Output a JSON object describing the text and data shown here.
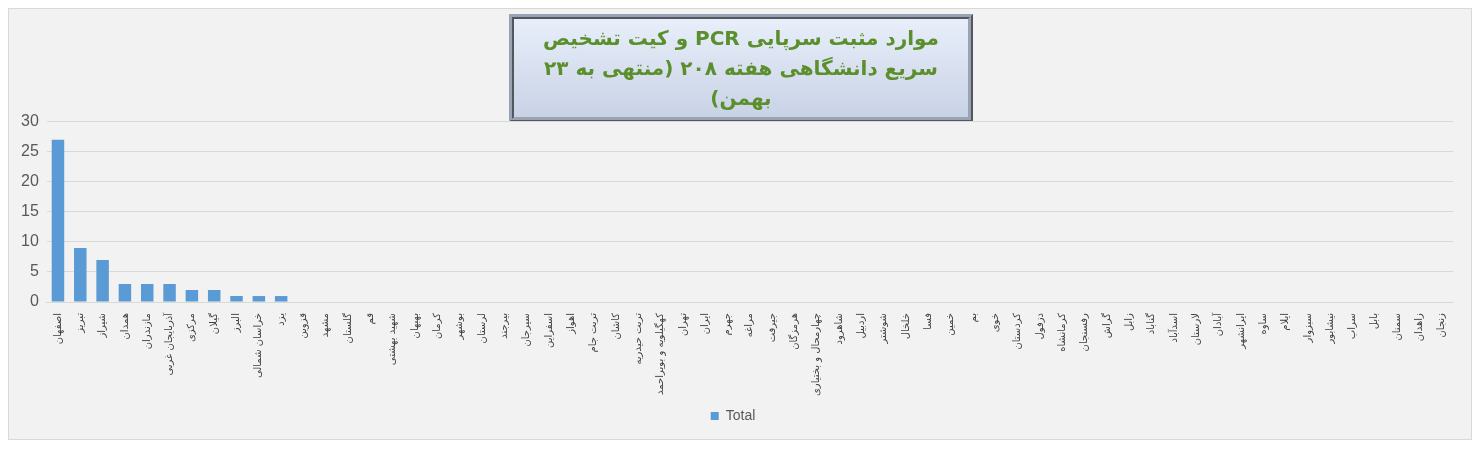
{
  "chart_data": {
    "type": "bar",
    "title": "موارد مثبت سرپایی PCR و کیت تشخیص سریع دانشگاهی هفته ۲۰۸ (منتهی به ۲۳ بهمن)",
    "categories": [
      "اصفهان",
      "تبریز",
      "شیراز",
      "همدان",
      "مازندران",
      "آذربایجان غربی",
      "مرکزی",
      "گیلان",
      "البرز",
      "خراسان شمالی",
      "یزد",
      "قزوین",
      "مشهد",
      "گلستان",
      "قم",
      "شهید بهشتی",
      "بهبهان",
      "کرمان",
      "بوشهر",
      "لرستان",
      "بیرجند",
      "سیرجان",
      "اسفراین",
      "اهواز",
      "تربت جام",
      "کاشان",
      "تربت حیدریه",
      "کهگیلویه و بویراحمد",
      "تهران",
      "ایران",
      "جهرم",
      "مراغه",
      "جیرفت",
      "هرمزگان",
      "چهارمحال و بختیاری",
      "شاهرود",
      "اردبیل",
      "شوشتر",
      "خلخال",
      "فسا",
      "خمین",
      "بم",
      "خوی",
      "کردستان",
      "دزفول",
      "کرمانشاه",
      "رفسنجان",
      "گراش",
      "زابل",
      "گناباد",
      "اسدآباد",
      "لارستان",
      "آبادان",
      "ایرانشهر",
      "ساوه",
      "ایلام",
      "سبزوار",
      "نیشابور",
      "سراب",
      "بابل",
      "سمنان",
      "زاهدان",
      "زنجان"
    ],
    "series": [
      {
        "name": "Total",
        "color": "#5b9bd5",
        "values": [
          27,
          9,
          7,
          3,
          3,
          3,
          2,
          2,
          1,
          1,
          1,
          0,
          0,
          0,
          0,
          0,
          0,
          0,
          0,
          0,
          0,
          0,
          0,
          0,
          0,
          0,
          0,
          0,
          0,
          0,
          0,
          0,
          0,
          0,
          0,
          0,
          0,
          0,
          0,
          0,
          0,
          0,
          0,
          0,
          0,
          0,
          0,
          0,
          0,
          0,
          0,
          0,
          0,
          0,
          0,
          0,
          0,
          0,
          0,
          0,
          0,
          0,
          0
        ]
      }
    ],
    "ylim": [
      0,
      30
    ],
    "yticks": [
      0,
      5,
      10,
      15,
      20,
      25,
      30
    ],
    "grid": "y",
    "legend": "bottom"
  }
}
